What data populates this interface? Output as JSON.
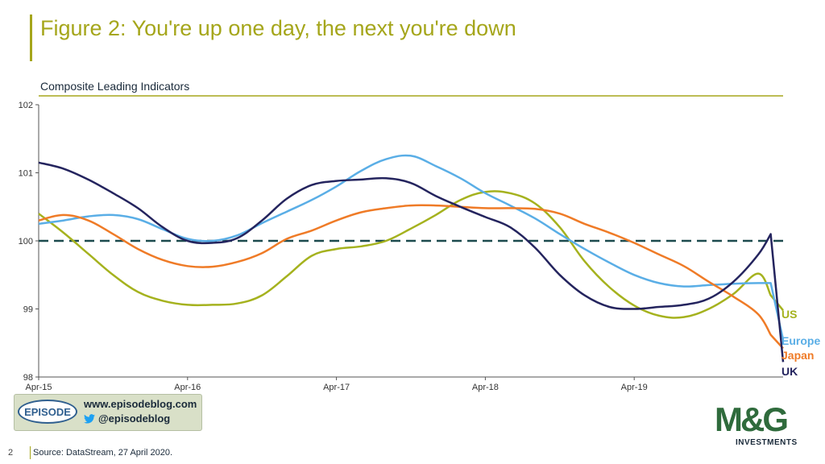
{
  "title": "Figure 2: You're up one day, the next you're down",
  "subtitle": "Composite Leading Indicators",
  "source": "Source: DataStream, 27 April 2020.",
  "page_number": "2",
  "branding": {
    "episode_logo_text": "EPISODE",
    "episode_url": "www.episodeblog.com",
    "episode_handle": "@episodeblog",
    "mg_logo_text": "M&G",
    "mg_logo_sub": "INVESTMENTS"
  },
  "colors": {
    "accent": "#A5A61B",
    "US": "#A5B21E",
    "Europe": "#5AAEE6",
    "Japan": "#EF7B27",
    "UK": "#24245E",
    "reference_line": "#1C4A4E",
    "mg_green": "#2f6b3c"
  },
  "chart_data": {
    "type": "line",
    "x_start": "Apr-15",
    "x_end": "Apr-20",
    "x_tick_labels": [
      "Apr-15",
      "Apr-16",
      "Apr-17",
      "Apr-18",
      "Apr-19"
    ],
    "ylim": [
      98,
      102
    ],
    "y_ticks": [
      98,
      99,
      100,
      101,
      102
    ],
    "y_tick_labels": [
      "98",
      "99",
      "100",
      "101",
      "102"
    ],
    "reference_line": {
      "y": 100,
      "style": "dashed"
    },
    "legend_placement": "right end labels",
    "grid": false,
    "x_months": [
      0,
      2,
      4,
      6,
      8,
      10,
      12,
      14,
      16,
      18,
      20,
      22,
      24,
      26,
      28,
      30,
      32,
      34,
      36,
      38,
      40,
      42,
      44,
      46,
      48,
      50,
      52,
      54,
      56,
      58,
      59,
      60
    ],
    "series": [
      {
        "name": "US",
        "values": [
          100.4,
          100.12,
          99.81,
          99.5,
          99.25,
          99.12,
          99.06,
          99.06,
          99.08,
          99.2,
          99.48,
          99.78,
          99.88,
          99.92,
          100.0,
          100.18,
          100.38,
          100.6,
          100.72,
          100.7,
          100.55,
          100.2,
          99.7,
          99.32,
          99.05,
          98.9,
          98.88,
          99.0,
          99.22,
          99.52,
          99.2,
          98.98
        ]
      },
      {
        "name": "Europe",
        "values": [
          100.25,
          100.3,
          100.36,
          100.38,
          100.32,
          100.17,
          100.03,
          100.0,
          100.08,
          100.26,
          100.43,
          100.6,
          100.8,
          101.03,
          101.2,
          101.25,
          101.1,
          100.92,
          100.7,
          100.52,
          100.33,
          100.1,
          99.88,
          99.68,
          99.5,
          99.38,
          99.33,
          99.35,
          99.37,
          99.38,
          99.38,
          98.55
        ]
      },
      {
        "name": "Japan",
        "values": [
          100.3,
          100.38,
          100.3,
          100.1,
          99.88,
          99.72,
          99.63,
          99.62,
          99.69,
          99.82,
          100.03,
          100.15,
          100.3,
          100.42,
          100.48,
          100.52,
          100.52,
          100.5,
          100.48,
          100.48,
          100.47,
          100.4,
          100.25,
          100.12,
          99.97,
          99.8,
          99.63,
          99.4,
          99.18,
          98.92,
          98.62,
          98.42
        ]
      },
      {
        "name": "UK",
        "values": [
          101.15,
          101.06,
          100.9,
          100.7,
          100.48,
          100.2,
          100.0,
          99.97,
          100.04,
          100.3,
          100.62,
          100.82,
          100.88,
          100.9,
          100.92,
          100.85,
          100.66,
          100.5,
          100.35,
          100.2,
          99.9,
          99.5,
          99.2,
          99.03,
          99.0,
          99.03,
          99.06,
          99.15,
          99.4,
          99.8,
          100.1,
          98.22
        ]
      }
    ]
  }
}
